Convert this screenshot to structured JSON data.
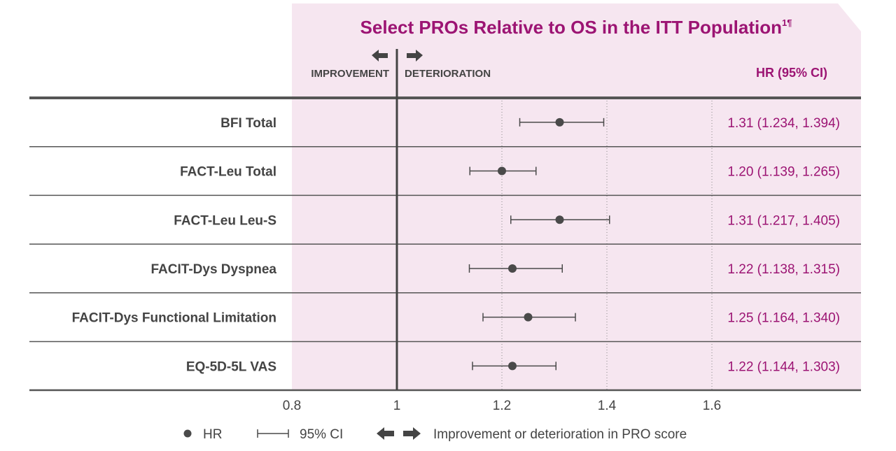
{
  "chart_data": {
    "type": "forest",
    "title": "Select PROs Relative to OS in the ITT Population",
    "title_superscript": "1¶",
    "direction_labels": {
      "left": "IMPROVEMENT",
      "right": "DETERIORATION"
    },
    "value_column_header": "HR (95% CI)",
    "xlim": [
      0.8,
      1.8
    ],
    "x_ticks": [
      0.8,
      1,
      1.2,
      1.4,
      1.6
    ],
    "x_tick_labels": [
      "0.8",
      "1",
      "1.2",
      "1.4",
      "1.6"
    ],
    "reference_line": 1,
    "grid": "dotted vertical at 1.2, 1.4, 1.6",
    "rows": [
      {
        "label": "BFI Total",
        "hr": 1.31,
        "lower": 1.234,
        "upper": 1.394,
        "text": "1.31 (1.234, 1.394)"
      },
      {
        "label": "FACT-Leu Total",
        "hr": 1.2,
        "lower": 1.139,
        "upper": 1.265,
        "text": "1.20 (1.139, 1.265)"
      },
      {
        "label": "FACT-Leu Leu-S",
        "hr": 1.31,
        "lower": 1.217,
        "upper": 1.405,
        "text": "1.31 (1.217, 1.405)"
      },
      {
        "label": "FACIT-Dys Dyspnea",
        "hr": 1.22,
        "lower": 1.138,
        "upper": 1.315,
        "text": "1.22 (1.138, 1.315)"
      },
      {
        "label": "FACIT-Dys Functional Limitation",
        "hr": 1.25,
        "lower": 1.164,
        "upper": 1.34,
        "text": "1.25 (1.164, 1.340)"
      },
      {
        "label": "EQ-5D-5L VAS",
        "hr": 1.22,
        "lower": 1.144,
        "upper": 1.303,
        "text": "1.22 (1.144, 1.303)"
      }
    ],
    "legend": {
      "hr": "HR",
      "ci": "95% CI",
      "arrows": "Improvement or deterioration in PRO score"
    },
    "colors": {
      "panel": "#f6e6f0",
      "accent": "#9c1473",
      "marks": "#4a4a4a"
    }
  }
}
